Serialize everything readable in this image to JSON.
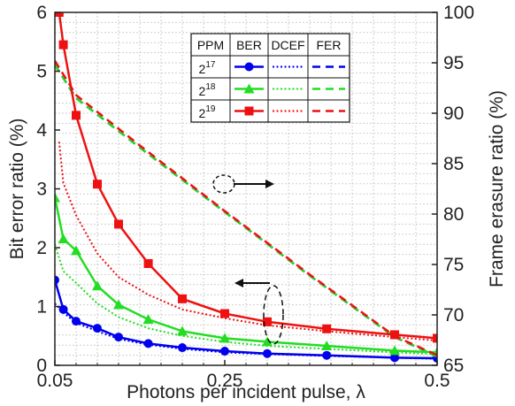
{
  "chart_data": {
    "type": "line",
    "xlabel": "Photons per incident pulse, λ",
    "ylabel_left": "Bit error ratio (%)",
    "ylabel_right": "Frame erasure ratio (%)",
    "x_ticks": [
      "0.05",
      "0.25",
      "0.5"
    ],
    "y_left_ticks": [
      "0",
      "1",
      "2",
      "3",
      "4",
      "5",
      "6"
    ],
    "y_right_ticks": [
      "65",
      "70",
      "75",
      "80",
      "85",
      "90",
      "95",
      "100"
    ],
    "xlim": [
      0.05,
      0.5
    ],
    "ylim_left": [
      0,
      6
    ],
    "ylim_right": [
      65,
      100
    ],
    "grid": true,
    "legend": {
      "position": "top-center",
      "headers": [
        "PPM",
        "BER",
        "DCEF",
        "FER"
      ],
      "rows": [
        {
          "base": "2",
          "exp": "17",
          "color": "#0000ee",
          "marker": "circle"
        },
        {
          "base": "2",
          "exp": "18",
          "color": "#22dd22",
          "marker": "triangle"
        },
        {
          "base": "2",
          "exp": "19",
          "color": "#ee1111",
          "marker": "square"
        }
      ]
    },
    "series": [
      {
        "color": "#0000ee",
        "marker": "circle",
        "x": [
          0.05,
          0.06,
          0.075,
          0.1,
          0.125,
          0.16,
          0.2,
          0.25,
          0.3,
          0.37,
          0.45,
          0.5
        ],
        "ber": [
          1.45,
          0.95,
          0.75,
          0.63,
          0.48,
          0.37,
          0.3,
          0.24,
          0.2,
          0.17,
          0.13,
          0.12
        ],
        "dcef": [
          1.05,
          0.9,
          0.72,
          0.58,
          0.45,
          0.35,
          0.28,
          0.22,
          0.19,
          0.16,
          0.13,
          0.11
        ],
        "fer_x": [
          0.05,
          0.075,
          0.15,
          0.25,
          0.35,
          0.45,
          0.5
        ],
        "fer": [
          94.8,
          91.5,
          86.6,
          80.2,
          73.9,
          67.8,
          65.9
        ]
      },
      {
        "color": "#22dd22",
        "marker": "triangle",
        "x": [
          0.05,
          0.06,
          0.075,
          0.1,
          0.125,
          0.16,
          0.2,
          0.25,
          0.3,
          0.37,
          0.45,
          0.5
        ],
        "ber": [
          2.85,
          2.15,
          1.95,
          1.35,
          1.03,
          0.78,
          0.58,
          0.46,
          0.4,
          0.33,
          0.25,
          0.22
        ],
        "dcef": [
          2.05,
          1.6,
          1.4,
          1.05,
          0.82,
          0.63,
          0.5,
          0.4,
          0.33,
          0.28,
          0.22,
          0.19
        ],
        "fer_x": [
          0.05,
          0.075,
          0.15,
          0.25,
          0.35,
          0.45,
          0.5
        ],
        "fer": [
          94.8,
          91.5,
          86.6,
          80.2,
          73.9,
          67.8,
          65.9
        ]
      },
      {
        "color": "#ee1111",
        "marker": "square",
        "x": [
          0.055,
          0.06,
          0.075,
          0.1,
          0.125,
          0.16,
          0.2,
          0.25,
          0.3,
          0.37,
          0.45,
          0.5
        ],
        "ber": [
          6.0,
          5.45,
          4.25,
          3.08,
          2.4,
          1.73,
          1.13,
          0.88,
          0.74,
          0.62,
          0.52,
          0.46
        ],
        "dcef": [
          3.8,
          3.1,
          2.55,
          1.9,
          1.5,
          1.2,
          0.95,
          0.8,
          0.68,
          0.58,
          0.48,
          0.42
        ],
        "fer_x": [
          0.05,
          0.075,
          0.15,
          0.25,
          0.35,
          0.45,
          0.5
        ],
        "fer": [
          95.2,
          91.8,
          86.8,
          80.3,
          74.0,
          67.9,
          66.0
        ]
      }
    ]
  }
}
